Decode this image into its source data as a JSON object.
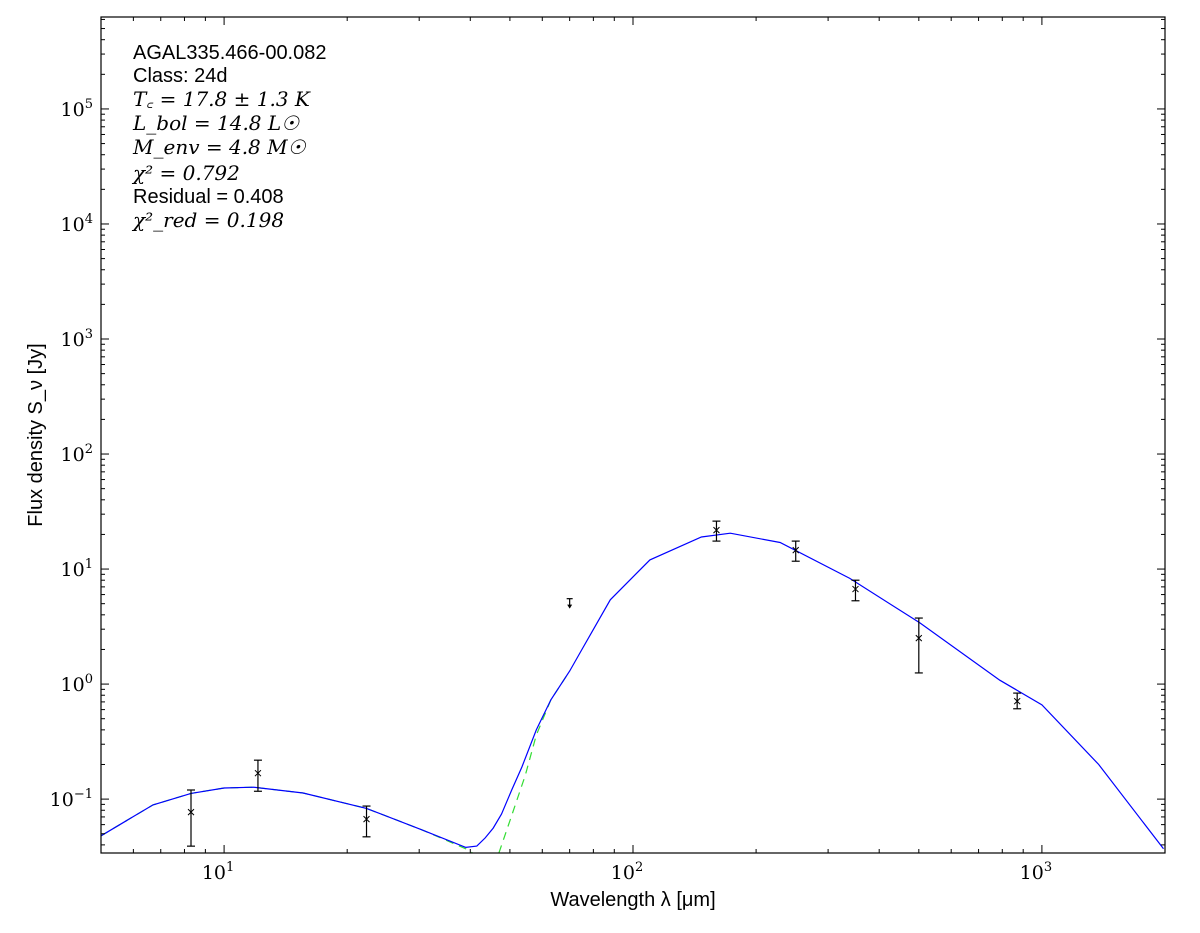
{
  "chart_data": {
    "type": "line",
    "xlabel": "Wavelength λ [μm]",
    "ylabel": "Flux density S_ν [Jy]",
    "xscale": "log",
    "yscale": "log",
    "xlim": [
      5,
      2000
    ],
    "ylim": [
      0.034,
      630000
    ],
    "xticks": [
      {
        "v": 10,
        "b": "10",
        "e": "1"
      },
      {
        "v": 100,
        "b": "10",
        "e": "2"
      },
      {
        "v": 1000,
        "b": "10",
        "e": "3"
      }
    ],
    "yticks": [
      {
        "v": 0.1,
        "b": "10",
        "e": "−1"
      },
      {
        "v": 1,
        "b": "10",
        "e": "0"
      },
      {
        "v": 10,
        "b": "10",
        "e": "1"
      },
      {
        "v": 100,
        "b": "10",
        "e": "2"
      },
      {
        "v": 1000,
        "b": "10",
        "e": "3"
      },
      {
        "v": 10000,
        "b": "10",
        "e": "4"
      },
      {
        "v": 100000,
        "b": "10",
        "e": "5"
      }
    ],
    "grid": false,
    "annotations": {
      "source": "AGAL335.466-00.082",
      "class": "Class: 24d",
      "tc": "T꜀ = 17.8 ± 1.3 K",
      "lbol": "L_bol = 14.8 L☉",
      "menv": "M_env = 4.8 M☉",
      "chi2": "χ² = 0.792",
      "residual": "Residual = 0.408",
      "chi2red": "χ²_red = 0.198"
    },
    "points": [
      {
        "x": 8.3,
        "y": 0.077,
        "lo": 0.039,
        "hi": 0.12
      },
      {
        "x": 12.1,
        "y": 0.168,
        "lo": 0.117,
        "hi": 0.218
      },
      {
        "x": 22.3,
        "y": 0.067,
        "lo": 0.047,
        "hi": 0.087
      },
      {
        "x": 160,
        "y": 21.8,
        "lo": 17.5,
        "hi": 26.1
      },
      {
        "x": 250,
        "y": 14.6,
        "lo": 11.7,
        "hi": 17.5
      },
      {
        "x": 350,
        "y": 6.7,
        "lo": 5.3,
        "hi": 8.0
      },
      {
        "x": 500,
        "y": 2.51,
        "lo": 1.25,
        "hi": 3.75
      },
      {
        "x": 870,
        "y": 0.71,
        "lo": 0.61,
        "hi": 0.835
      }
    ],
    "upper_limits": [
      {
        "x": 70,
        "y": 5.0
      }
    ],
    "series": [
      {
        "color": "#0000ff",
        "style": "solid",
        "x": [
          5,
          6.7,
          8.3,
          10,
          11.8,
          15.6,
          22.3,
          30.5,
          39,
          41.5,
          43.5,
          45.5,
          47.7,
          50.5,
          53.5,
          58,
          63,
          70,
          75,
          88,
          110,
          147,
          173,
          229,
          339,
          503,
          789,
          1000,
          1377,
          1983
        ],
        "y": [
          0.048,
          0.089,
          0.112,
          0.125,
          0.127,
          0.113,
          0.083,
          0.054,
          0.038,
          0.039,
          0.046,
          0.056,
          0.074,
          0.12,
          0.19,
          0.4,
          0.73,
          1.3,
          2.0,
          5.4,
          12,
          19,
          20.5,
          17,
          8.3,
          3.4,
          1.08,
          0.66,
          0.2,
          0.037
        ]
      },
      {
        "color": "#33dd33",
        "style": "dashed",
        "x": [
          5,
          6.7,
          8.3,
          10,
          11.8,
          15.6,
          22.3,
          30.5,
          39,
          40.5
        ],
        "y": [
          0.048,
          0.089,
          0.112,
          0.125,
          0.127,
          0.113,
          0.083,
          0.054,
          0.037,
          0.034
        ]
      },
      {
        "color": "#33dd33",
        "style": "dashed",
        "x": [
          47,
          50.5,
          54.5,
          58,
          63,
          70
        ],
        "y": [
          0.034,
          0.072,
          0.16,
          0.36,
          0.73,
          1.3
        ]
      }
    ]
  }
}
